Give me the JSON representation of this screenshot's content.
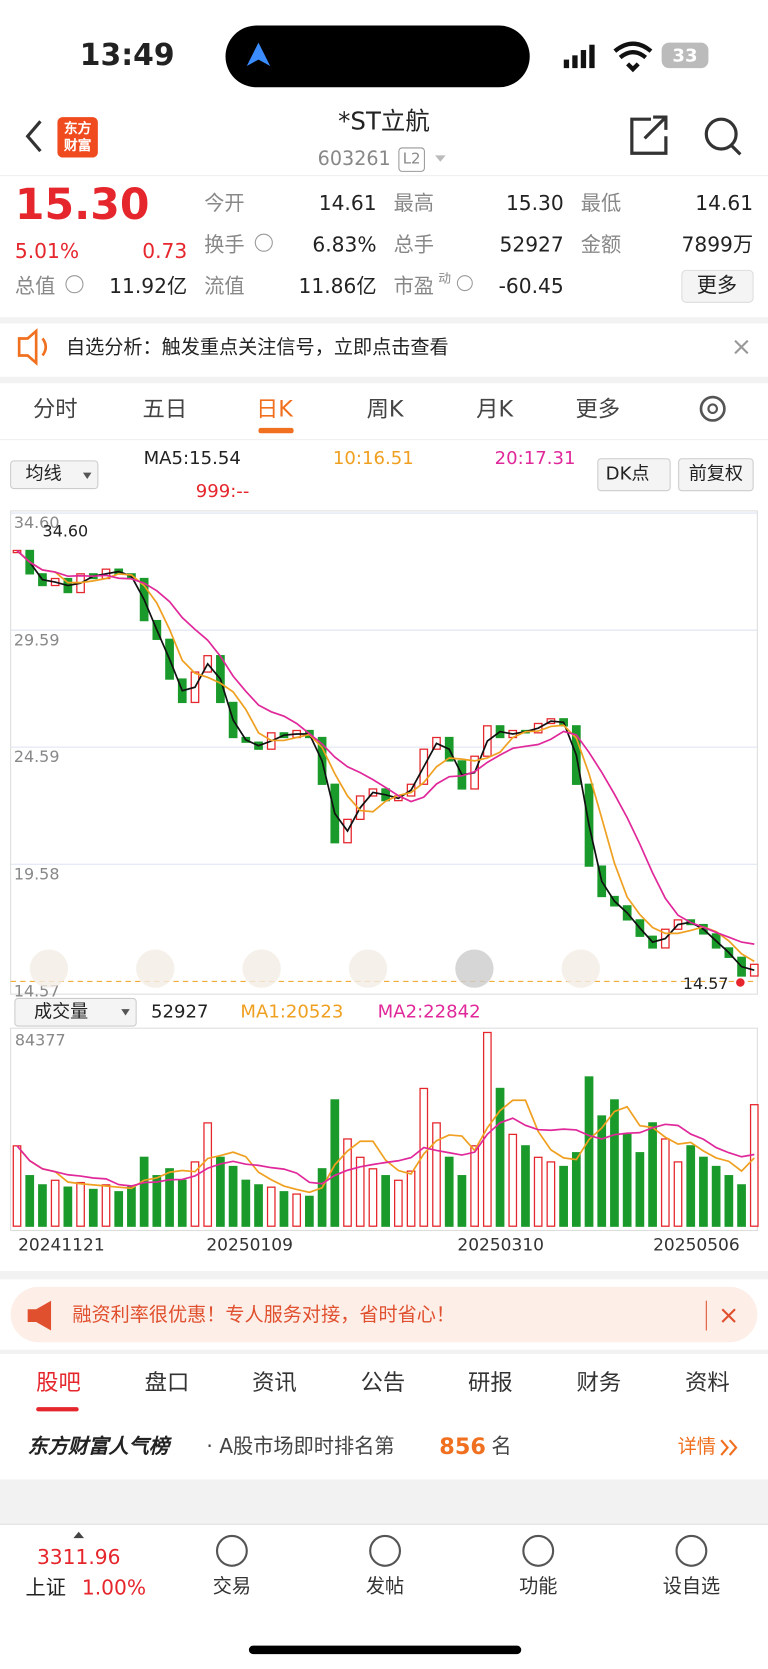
{
  "status": {
    "time": "13:49",
    "battery": "33"
  },
  "header": {
    "logo": [
      "东方",
      "财富"
    ],
    "title": "*ST立航",
    "code": "603261",
    "level": "L2"
  },
  "quote": {
    "price": "15.30",
    "change_pct": "5.01%",
    "change": "0.73",
    "market_cap_label": "总值",
    "market_cap": "11.92亿",
    "fields": [
      {
        "label": "今开",
        "value": "14.61"
      },
      {
        "label": "最高",
        "value": "15.30"
      },
      {
        "label": "最低",
        "value": "14.61"
      },
      {
        "label": "换手",
        "value": "6.83%"
      },
      {
        "label": "总手",
        "value": "52927"
      },
      {
        "label": "金额",
        "value": "7899万"
      },
      {
        "label": "流值",
        "value": "11.86亿"
      },
      {
        "label": "市盈",
        "sup": "动",
        "value": "-60.45"
      }
    ],
    "more": "更多"
  },
  "alert": "自选分析：触发重点关注信号，立即点击查看",
  "tabs": [
    "分时",
    "五日",
    "日K",
    "周K",
    "月K",
    "更多"
  ],
  "indicators": {
    "ma_select": "均线",
    "ma5": "MA5:15.54",
    "ma10": "10:16.51",
    "ma20": "20:17.31",
    "ma999": "999:--",
    "dk": "DK点",
    "adjust": "前复权"
  },
  "kline": {
    "ylim": [
      14.57,
      34.6
    ],
    "yticks": [
      {
        "value": 34.6,
        "label": "34.60"
      },
      29.59,
      24.59,
      19.58,
      14.57
    ],
    "high_label": "34.60",
    "low_label": "14.57",
    "close": [
      33.0,
      32.0,
      31.5,
      31.8,
      31.2,
      32.0,
      31.8,
      32.2,
      32.0,
      31.8,
      30.0,
      29.2,
      27.5,
      26.5,
      27.8,
      28.5,
      26.5,
      25.0,
      24.8,
      24.5,
      25.2,
      25.0,
      25.3,
      25.0,
      23.0,
      20.5,
      21.5,
      22.5,
      22.8,
      22.3,
      22.5,
      23.0,
      24.5,
      25.0,
      24.0,
      22.8,
      24.2,
      25.5,
      25.0,
      25.3,
      25.2,
      25.6,
      25.8,
      25.5,
      23.0,
      19.5,
      18.2,
      17.8,
      17.2,
      16.5,
      16.0,
      16.8,
      17.2,
      17.0,
      16.6,
      16.0,
      15.6,
      14.8,
      15.3
    ],
    "volume_select": "成交量",
    "volume_last": "52927",
    "vol_ma1": "MA1:20523",
    "vol_ma2": "MA2:22842",
    "vlim": [
      0,
      84377
    ],
    "vticks": [
      84377
    ],
    "volume": [
      35000,
      22000,
      18000,
      20000,
      17000,
      19000,
      16000,
      18000,
      15000,
      17000,
      30000,
      22000,
      25000,
      20000,
      28000,
      45000,
      30000,
      26000,
      20000,
      18000,
      17000,
      15000,
      14000,
      13000,
      25000,
      55000,
      38000,
      30000,
      25000,
      22000,
      20000,
      24000,
      60000,
      45000,
      30000,
      22000,
      35000,
      84377,
      60000,
      40000,
      35000,
      30000,
      28000,
      26000,
      32000,
      65000,
      48000,
      55000,
      40000,
      32000,
      45000,
      38000,
      28000,
      35000,
      30000,
      26000,
      22000,
      18000,
      52927
    ],
    "dates": [
      "20241121",
      "20250109",
      "20250310",
      "20250506"
    ]
  },
  "ad": "融资利率很优惠！专人服务对接，省时省心！",
  "subtabs": [
    "股吧",
    "盘口",
    "资讯",
    "公告",
    "研报",
    "财务",
    "资料"
  ],
  "rank": {
    "brand": "东方财富人气榜",
    "text": "· A股市场即时排名第",
    "rank": "856",
    "suffix": "名",
    "detail": "详情"
  },
  "index": {
    "value": "3311.96",
    "name": "上证",
    "change": "1.00%"
  },
  "nav": [
    "交易",
    "发帖",
    "功能",
    "设自选"
  ]
}
